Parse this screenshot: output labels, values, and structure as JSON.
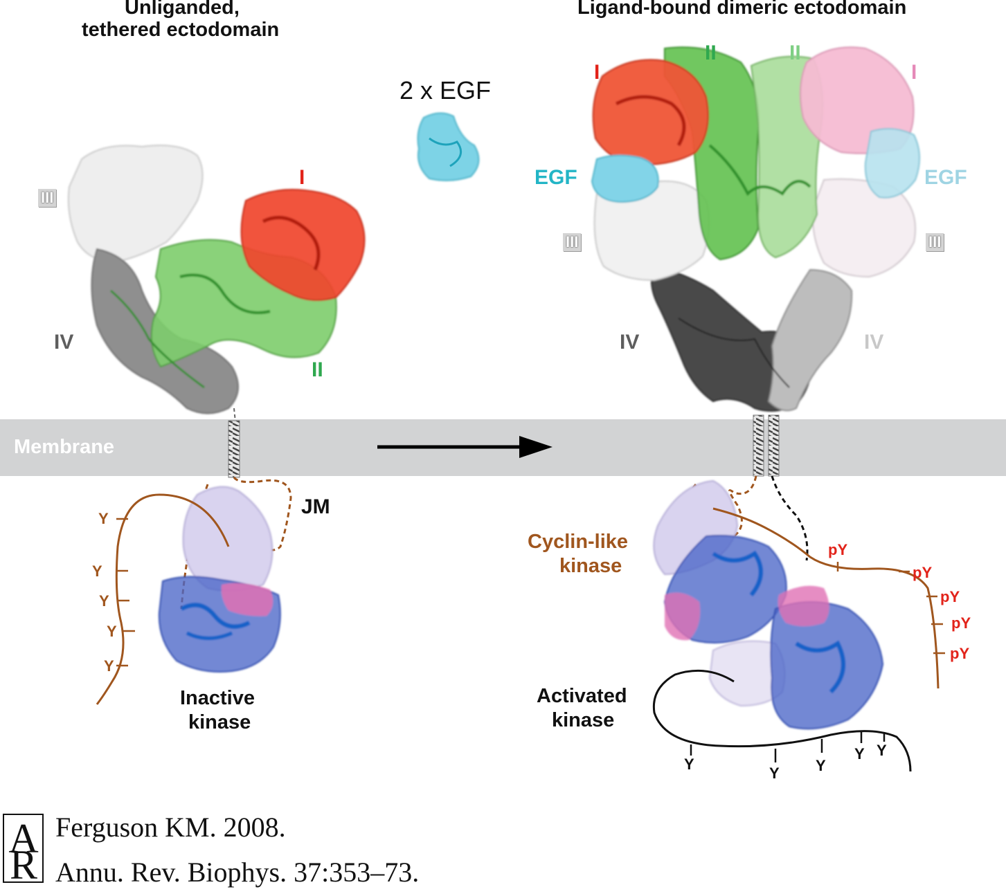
{
  "titles": {
    "left_line1": "Unliganded,",
    "left_line2": "tethered ectodomain",
    "right": "Ligand-bound dimeric ectodomain",
    "egf": "2 x EGF"
  },
  "domains_left": {
    "I": "I",
    "II": "II",
    "III": "III",
    "IV": "IV"
  },
  "domains_right": {
    "I_a": "I",
    "I_b": "I",
    "II_a": "II",
    "II_b": "II",
    "III_a": "III",
    "III_b": "III",
    "IV_a": "IV",
    "IV_b": "IV",
    "EGF_a": "EGF",
    "EGF_b": "EGF"
  },
  "membrane": "Membrane",
  "jm": "JM",
  "kinase": {
    "inactive_1": "Inactive",
    "inactive_2": "kinase",
    "cyclin_1": "Cyclin-like",
    "cyclin_2": "kinase",
    "activated_1": "Activated",
    "activated_2": "kinase"
  },
  "tails": {
    "left_y": [
      "Y",
      "Y",
      "Y",
      "Y",
      "Y"
    ],
    "right_py": [
      "pY",
      "pY",
      "pY",
      "pY",
      "pY"
    ],
    "bottom_y": [
      "Y",
      "Y",
      "Y",
      "Y",
      "Y"
    ]
  },
  "citation": {
    "logo": "AR",
    "line1": "Ferguson KM. 2008.",
    "line2": "Annu. Rev. Biophys. 37:353–73."
  },
  "colors": {
    "domain_I": "#f0442e",
    "domain_II": "#6cc35a",
    "domain_III": "#e8e8e8",
    "domain_IV": "#8c8c8c",
    "egf": "#7dd3e6",
    "membrane": "#d2d3d4",
    "tail_brown": "#a0561e",
    "kinase_blue": "#4b66c8",
    "kinase_pink": "#e071b4",
    "kinase_lilac": "#d9d3ef",
    "label_red": "#e2231a",
    "label_green": "#2fa84f",
    "label_cyan": "#23b5c6",
    "label_pink": "#e58ab8",
    "label_lightcyan": "#9fd4e3",
    "label_gray": "#5e5e5e"
  }
}
